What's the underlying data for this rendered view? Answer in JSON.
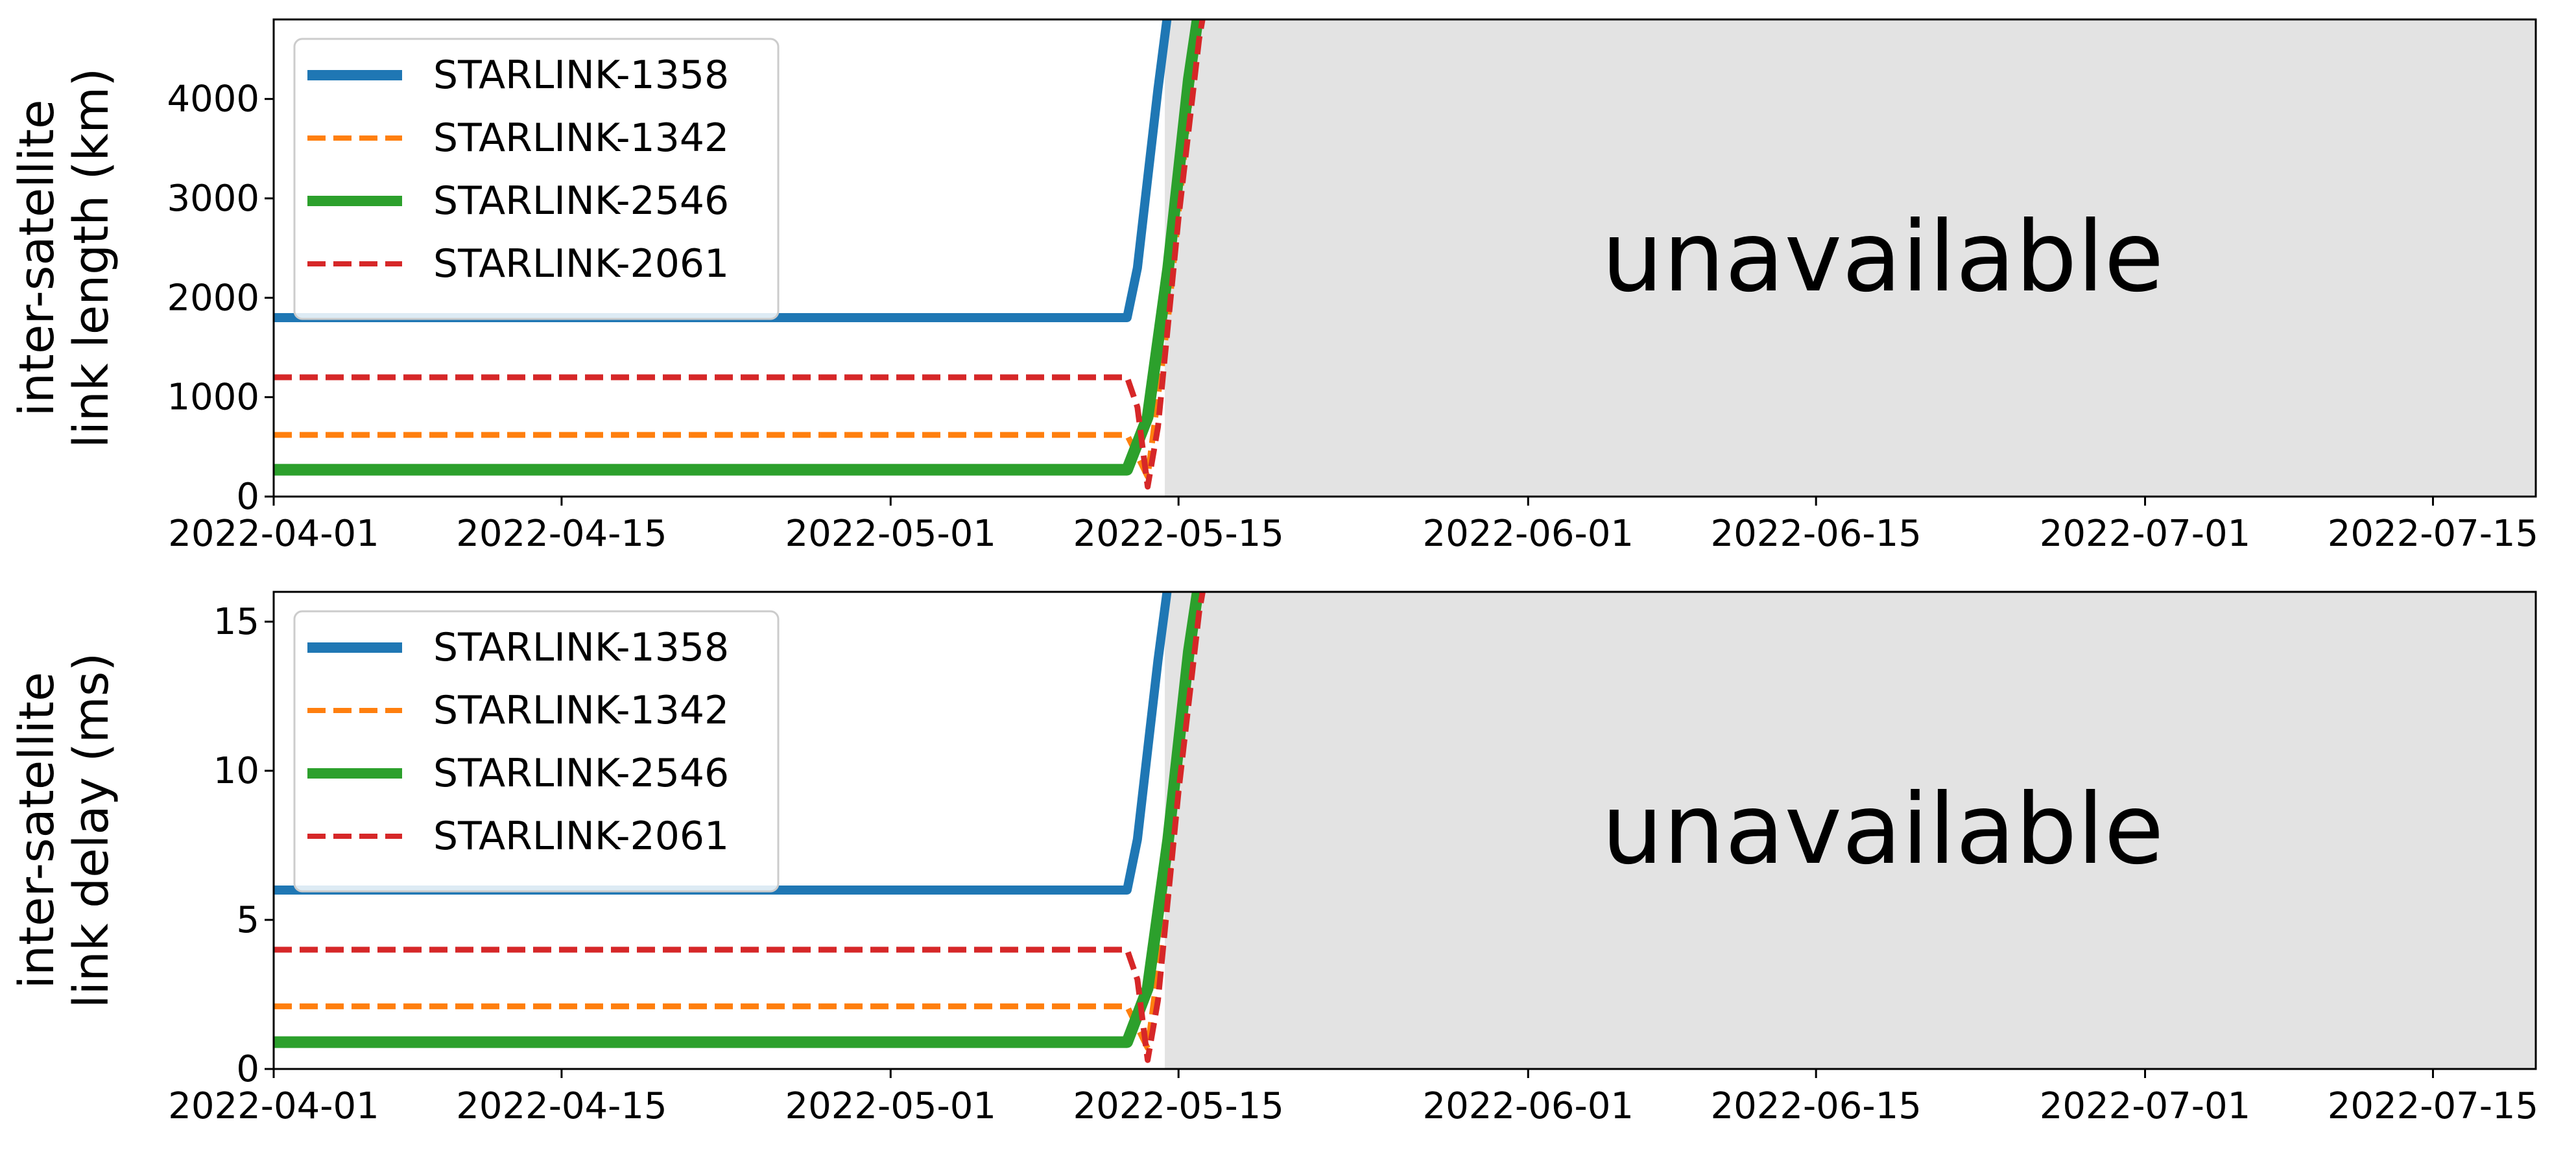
{
  "colors": {
    "starlink_1358": "#1f77b4",
    "starlink_1342": "#ff7f0e",
    "starlink_2546": "#2ca02c",
    "starlink_2061": "#d62728",
    "unavailable_region": "#e3e3e3"
  },
  "chart_data": [
    {
      "type": "line",
      "ylabel_lines": [
        "inter-satellite",
        "link length (km)"
      ],
      "xlim": [
        "2022-04-01",
        "2022-07-20"
      ],
      "ylim": [
        0,
        4800
      ],
      "yticks": [
        0,
        1000,
        2000,
        3000,
        4000
      ],
      "xticks": [
        "2022-04-01",
        "2022-04-15",
        "2022-05-01",
        "2022-05-15",
        "2022-06-01",
        "2022-06-15",
        "2022-07-01",
        "2022-07-15"
      ],
      "grid": false,
      "legend_position": "upper-left",
      "annotation": "unavailable",
      "unavailable_region": [
        "2022-05-14T08:00",
        "2022-07-20"
      ],
      "series": [
        {
          "name": "STARLINK-1358",
          "style": "solid",
          "x": [
            "2022-04-01",
            "2022-04-15",
            "2022-05-01",
            "2022-05-12T12:00",
            "2022-05-13T00:00",
            "2022-05-13T12:00",
            "2022-05-14T00:00",
            "2022-05-14T12:00"
          ],
          "y": [
            1800,
            1800,
            1800,
            1800,
            2300,
            3200,
            4100,
            4900
          ]
        },
        {
          "name": "STARLINK-1342",
          "style": "dashed",
          "x": [
            "2022-04-01",
            "2022-04-15",
            "2022-05-01",
            "2022-05-12T12:00",
            "2022-05-13T12:00",
            "2022-05-14T12:00",
            "2022-05-15T12:00",
            "2022-05-16T00:00"
          ],
          "y": [
            620,
            620,
            620,
            620,
            200,
            1800,
            3900,
            4900
          ]
        },
        {
          "name": "STARLINK-2546",
          "style": "solid",
          "x": [
            "2022-04-01",
            "2022-04-15",
            "2022-05-01",
            "2022-05-12T12:00",
            "2022-05-13T12:00",
            "2022-05-14T12:00",
            "2022-05-15T12:00",
            "2022-05-16T00:00"
          ],
          "y": [
            270,
            270,
            270,
            270,
            800,
            2300,
            4200,
            4900
          ]
        },
        {
          "name": "STARLINK-2061",
          "style": "dashed",
          "x": [
            "2022-04-01",
            "2022-04-15",
            "2022-05-01",
            "2022-05-12T12:00",
            "2022-05-13T00:00",
            "2022-05-13T12:00",
            "2022-05-14T00:00",
            "2022-05-15T00:00",
            "2022-05-16T00:00",
            "2022-05-16T06:00"
          ],
          "y": [
            1200,
            1200,
            1200,
            1200,
            900,
            100,
            700,
            2800,
            4600,
            4900
          ]
        }
      ]
    },
    {
      "type": "line",
      "ylabel_lines": [
        "inter-satellite",
        "link delay (ms)"
      ],
      "xlim": [
        "2022-04-01",
        "2022-07-20"
      ],
      "ylim": [
        0,
        16
      ],
      "yticks": [
        0,
        5,
        10,
        15
      ],
      "xticks": [
        "2022-04-01",
        "2022-04-15",
        "2022-05-01",
        "2022-05-15",
        "2022-06-01",
        "2022-06-15",
        "2022-07-01",
        "2022-07-15"
      ],
      "grid": false,
      "legend_position": "upper-left",
      "annotation": "unavailable",
      "unavailable_region": [
        "2022-05-14T08:00",
        "2022-07-20"
      ],
      "series": [
        {
          "name": "STARLINK-1358",
          "style": "solid",
          "x": [
            "2022-04-01",
            "2022-04-15",
            "2022-05-01",
            "2022-05-12T12:00",
            "2022-05-13T00:00",
            "2022-05-13T12:00",
            "2022-05-14T00:00",
            "2022-05-14T12:00"
          ],
          "y": [
            6.0,
            6.0,
            6.0,
            6.0,
            7.7,
            10.7,
            13.7,
            16.3
          ]
        },
        {
          "name": "STARLINK-1342",
          "style": "dashed",
          "x": [
            "2022-04-01",
            "2022-04-15",
            "2022-05-01",
            "2022-05-12T12:00",
            "2022-05-13T12:00",
            "2022-05-14T12:00",
            "2022-05-15T12:00",
            "2022-05-16T00:00"
          ],
          "y": [
            2.1,
            2.1,
            2.1,
            2.1,
            0.7,
            6.0,
            13.0,
            16.3
          ]
        },
        {
          "name": "STARLINK-2546",
          "style": "solid",
          "x": [
            "2022-04-01",
            "2022-04-15",
            "2022-05-01",
            "2022-05-12T12:00",
            "2022-05-13T12:00",
            "2022-05-14T12:00",
            "2022-05-15T12:00",
            "2022-05-16T00:00"
          ],
          "y": [
            0.9,
            0.9,
            0.9,
            0.9,
            2.7,
            7.7,
            14.0,
            16.3
          ]
        },
        {
          "name": "STARLINK-2061",
          "style": "dashed",
          "x": [
            "2022-04-01",
            "2022-04-15",
            "2022-05-01",
            "2022-05-12T12:00",
            "2022-05-13T00:00",
            "2022-05-13T12:00",
            "2022-05-14T00:00",
            "2022-05-15T00:00",
            "2022-05-16T00:00",
            "2022-05-16T06:00"
          ],
          "y": [
            4.0,
            4.0,
            4.0,
            4.0,
            3.0,
            0.3,
            2.3,
            9.3,
            15.3,
            16.3
          ]
        }
      ]
    }
  ]
}
